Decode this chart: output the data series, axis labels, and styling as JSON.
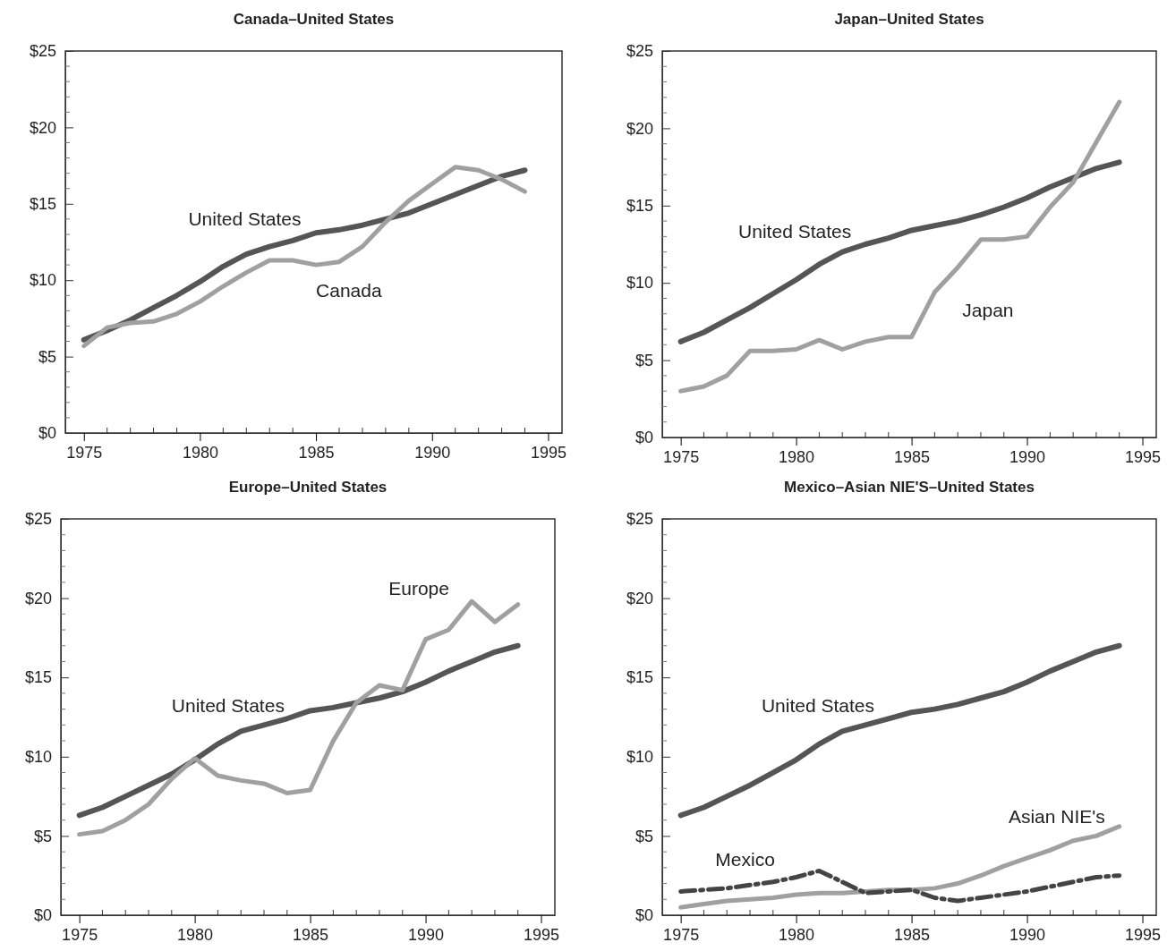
{
  "chart_data": [
    {
      "type": "line",
      "title": "Canada–United States",
      "x": [
        1975,
        1976,
        1977,
        1978,
        1979,
        1980,
        1981,
        1982,
        1983,
        1984,
        1985,
        1986,
        1987,
        1988,
        1989,
        1990,
        1991,
        1992,
        1993,
        1994
      ],
      "xlim": [
        1974.2,
        1995.6
      ],
      "xticks": [
        1975,
        1980,
        1985,
        1990,
        1995
      ],
      "ylim": [
        0,
        25
      ],
      "yticks": [
        {
          "value": 0,
          "label": "$0"
        },
        {
          "value": 5,
          "label": "$5"
        },
        {
          "value": 10,
          "label": "$10"
        },
        {
          "value": 15,
          "label": "$15"
        },
        {
          "value": 20,
          "label": "$20"
        },
        {
          "value": 25,
          "label": "$25"
        }
      ],
      "grid": false,
      "legend": false,
      "series": [
        {
          "name": "United States",
          "color": "#555555",
          "line_style": "solid",
          "values": [
            6.1,
            6.7,
            7.4,
            8.2,
            9.0,
            9.9,
            10.9,
            11.7,
            12.2,
            12.6,
            13.1,
            13.3,
            13.6,
            14.0,
            14.4,
            15.0,
            15.6,
            16.2,
            16.8,
            17.2
          ]
        },
        {
          "name": "Canada",
          "color": "#a0a0a0",
          "line_style": "solid",
          "values": [
            5.7,
            6.9,
            7.2,
            7.3,
            7.8,
            8.6,
            9.6,
            10.5,
            11.3,
            11.3,
            11.0,
            11.2,
            12.2,
            13.8,
            15.2,
            16.3,
            17.4,
            17.2,
            16.6,
            15.8
          ]
        }
      ]
    },
    {
      "type": "line",
      "title": "Japan–United States",
      "x": [
        1975,
        1976,
        1977,
        1978,
        1979,
        1980,
        1981,
        1982,
        1983,
        1984,
        1985,
        1986,
        1987,
        1988,
        1989,
        1990,
        1991,
        1992,
        1993,
        1994
      ],
      "xlim": [
        1974.2,
        1995.6
      ],
      "xticks": [
        1975,
        1980,
        1985,
        1990,
        1995
      ],
      "ylim": [
        0,
        25
      ],
      "yticks": [
        {
          "value": 0,
          "label": "$0"
        },
        {
          "value": 5,
          "label": "$5"
        },
        {
          "value": 10,
          "label": "$10"
        },
        {
          "value": 15,
          "label": "$15"
        },
        {
          "value": 20,
          "label": "$20"
        },
        {
          "value": 25,
          "label": "$25"
        }
      ],
      "grid": false,
      "legend": false,
      "series": [
        {
          "name": "United States",
          "color": "#555555",
          "line_style": "solid",
          "values": [
            6.2,
            6.8,
            7.6,
            8.4,
            9.3,
            10.2,
            11.2,
            12.0,
            12.5,
            12.9,
            13.4,
            13.7,
            14.0,
            14.4,
            14.9,
            15.5,
            16.2,
            16.8,
            17.4,
            17.8
          ]
        },
        {
          "name": "Japan",
          "color": "#a0a0a0",
          "line_style": "solid",
          "values": [
            3.0,
            3.3,
            4.0,
            5.6,
            5.6,
            5.7,
            6.3,
            5.7,
            6.2,
            6.5,
            6.5,
            9.4,
            11.0,
            12.8,
            12.8,
            13.0,
            14.9,
            16.5,
            19.1,
            21.7
          ]
        }
      ]
    },
    {
      "type": "line",
      "title": "Europe–United States",
      "x": [
        1975,
        1976,
        1977,
        1978,
        1979,
        1980,
        1981,
        1982,
        1983,
        1984,
        1985,
        1986,
        1987,
        1988,
        1989,
        1990,
        1991,
        1992,
        1993,
        1994
      ],
      "xlim": [
        1974.2,
        1995.6
      ],
      "xticks": [
        1975,
        1980,
        1985,
        1990,
        1995
      ],
      "ylim": [
        0,
        25
      ],
      "yticks": [
        {
          "value": 0,
          "label": "$0"
        },
        {
          "value": 5,
          "label": "$5"
        },
        {
          "value": 10,
          "label": "$10"
        },
        {
          "value": 15,
          "label": "$15"
        },
        {
          "value": 20,
          "label": "$20"
        },
        {
          "value": 25,
          "label": "$25"
        }
      ],
      "grid": false,
      "legend": false,
      "series": [
        {
          "name": "United States",
          "color": "#555555",
          "line_style": "solid",
          "values": [
            6.3,
            6.8,
            7.5,
            8.2,
            8.9,
            9.8,
            10.8,
            11.6,
            12.0,
            12.4,
            12.9,
            13.1,
            13.4,
            13.7,
            14.1,
            14.7,
            15.4,
            16.0,
            16.6,
            17.0
          ]
        },
        {
          "name": "Europe",
          "color": "#a0a0a0",
          "line_style": "solid",
          "values": [
            5.1,
            5.3,
            6.0,
            7.0,
            8.6,
            9.9,
            8.8,
            8.5,
            8.3,
            7.7,
            7.9,
            11.0,
            13.4,
            14.5,
            14.2,
            17.4,
            18.0,
            19.8,
            18.5,
            19.6
          ]
        }
      ]
    },
    {
      "type": "line",
      "title": "Mexico–Asian NIE'S–United States",
      "x": [
        1975,
        1976,
        1977,
        1978,
        1979,
        1980,
        1981,
        1982,
        1983,
        1984,
        1985,
        1986,
        1987,
        1988,
        1989,
        1990,
        1991,
        1992,
        1993,
        1994
      ],
      "xlim": [
        1974.2,
        1995.6
      ],
      "xticks": [
        1975,
        1980,
        1985,
        1990,
        1995
      ],
      "ylim": [
        0,
        25
      ],
      "yticks": [
        {
          "value": 0,
          "label": "$0"
        },
        {
          "value": 5,
          "label": "$5"
        },
        {
          "value": 10,
          "label": "$10"
        },
        {
          "value": 15,
          "label": "$15"
        },
        {
          "value": 20,
          "label": "$20"
        },
        {
          "value": 25,
          "label": "$25"
        }
      ],
      "grid": false,
      "legend": false,
      "series": [
        {
          "name": "United States",
          "color": "#555555",
          "line_style": "solid",
          "values": [
            6.3,
            6.8,
            7.5,
            8.2,
            9.0,
            9.8,
            10.8,
            11.6,
            12.0,
            12.4,
            12.8,
            13.0,
            13.3,
            13.7,
            14.1,
            14.7,
            15.4,
            16.0,
            16.6,
            17.0
          ]
        },
        {
          "name": "Asian NIE's",
          "color": "#a0a0a0",
          "line_style": "solid",
          "values": [
            0.5,
            0.7,
            0.9,
            1.0,
            1.1,
            1.3,
            1.4,
            1.4,
            1.5,
            1.6,
            1.6,
            1.7,
            2.0,
            2.5,
            3.1,
            3.6,
            4.1,
            4.7,
            5.0,
            5.6
          ]
        },
        {
          "name": "Mexico",
          "color": "#444444",
          "line_style": "dashed",
          "values": [
            1.5,
            1.6,
            1.7,
            1.9,
            2.1,
            2.4,
            2.8,
            2.1,
            1.4,
            1.5,
            1.6,
            1.1,
            0.9,
            1.1,
            1.3,
            1.5,
            1.8,
            2.1,
            2.4,
            2.5
          ]
        }
      ]
    }
  ]
}
